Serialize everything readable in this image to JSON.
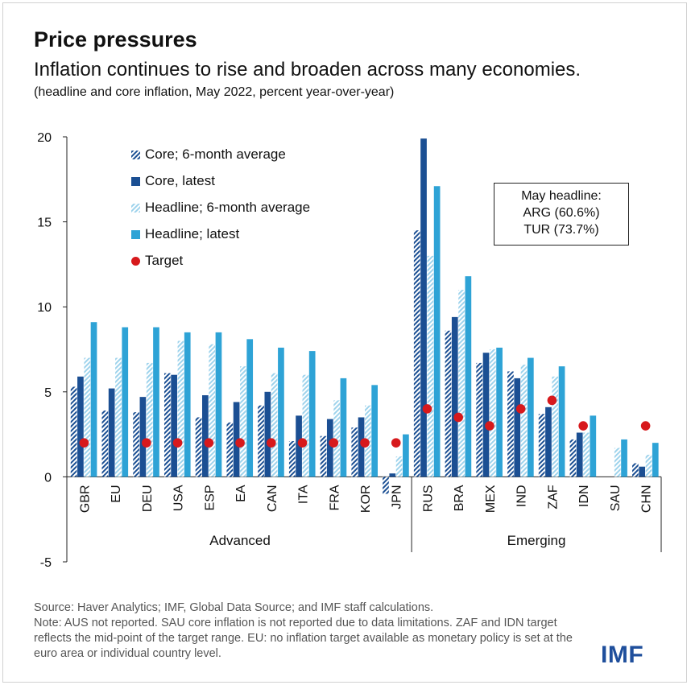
{
  "header": {
    "title": "Price pressures",
    "subtitle": "Inflation continues to rise and broaden across many economies.",
    "note": "(headline and core inflation, May 2022, percent year-over-year)"
  },
  "annotation": {
    "line1": "May headline:",
    "line2": "ARG (60.6%)",
    "line3": "TUR (73.7%)"
  },
  "footer": {
    "source": "Source: Haver Analytics; IMF, Global Data Source; and IMF staff calculations.",
    "note": "Note: AUS not reported. SAU core inflation is not reported due to data limitations. ZAF and IDN target reflects the mid-point of the target range. EU: no inflation target available as monetary policy is set at the euro area or individual country level."
  },
  "logo": {
    "text": "IMF"
  },
  "colors": {
    "core_latest": "#1b4f93",
    "headline_latest": "#2ea3d6",
    "core_avg": "#1b4f93",
    "headline_avg": "#9ed3ec",
    "target": "#d7191c"
  },
  "chart_data": {
    "type": "bar",
    "ylim": [
      -5,
      20
    ],
    "yticks": [
      -5,
      0,
      5,
      10,
      15,
      20
    ],
    "groups": [
      {
        "name": "Advanced",
        "count": 11
      },
      {
        "name": "Emerging",
        "count": 8
      }
    ],
    "categories": [
      "GBR",
      "EU",
      "DEU",
      "USA",
      "ESP",
      "EA",
      "CAN",
      "ITA",
      "FRA",
      "KOR",
      "JPN",
      "RUS",
      "BRA",
      "MEX",
      "IND",
      "ZAF",
      "IDN",
      "SAU",
      "CHN"
    ],
    "series": [
      {
        "name": "Core; 6-month average",
        "values": [
          5.3,
          3.9,
          3.8,
          6.1,
          3.5,
          3.2,
          4.2,
          2.1,
          2.4,
          2.9,
          -1.0,
          14.5,
          8.6,
          6.7,
          6.2,
          3.7,
          2.2,
          null,
          0.8
        ]
      },
      {
        "name": "Core, latest",
        "values": [
          5.9,
          5.2,
          4.7,
          6.0,
          4.8,
          4.4,
          5.0,
          3.6,
          3.4,
          3.5,
          0.2,
          19.9,
          9.4,
          7.3,
          5.8,
          4.1,
          2.6,
          null,
          0.6
        ]
      },
      {
        "name": "Headline; 6-month average",
        "values": [
          7.0,
          7.0,
          6.7,
          8.0,
          7.8,
          6.5,
          6.1,
          6.0,
          4.5,
          4.2,
          1.2,
          13.0,
          11.0,
          7.5,
          6.6,
          5.9,
          2.6,
          1.7,
          1.3
        ]
      },
      {
        "name": "Headline; latest",
        "values": [
          9.1,
          8.8,
          8.8,
          8.5,
          8.5,
          8.1,
          7.6,
          7.4,
          5.8,
          5.4,
          2.5,
          17.1,
          11.8,
          7.6,
          7.0,
          6.5,
          3.6,
          2.2,
          2.0
        ]
      }
    ],
    "target": {
      "name": "Target",
      "values": [
        2.0,
        null,
        2.0,
        2.0,
        2.0,
        2.0,
        2.0,
        2.0,
        2.0,
        2.0,
        2.0,
        4.0,
        3.5,
        3.0,
        4.0,
        4.5,
        3.0,
        null,
        3.0
      ]
    }
  }
}
